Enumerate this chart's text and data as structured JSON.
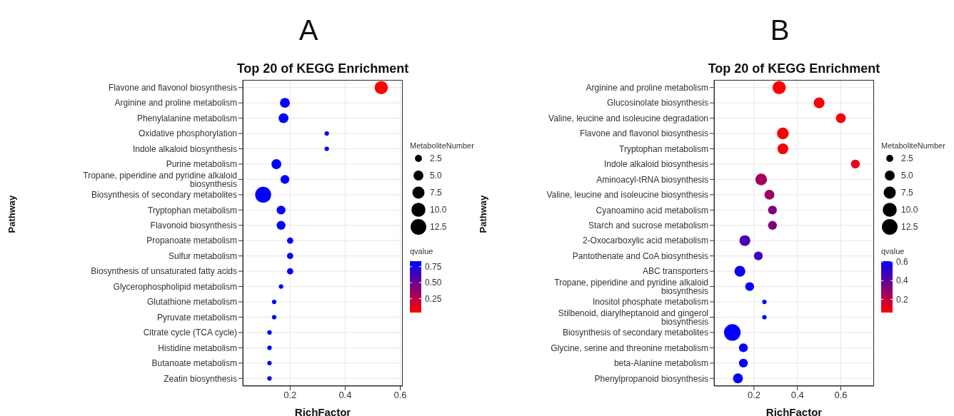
{
  "chart_data": [
    {
      "type": "bubble",
      "orientation": "horizontal",
      "annotations": [
        "A"
      ],
      "title": "Top 20 of KEGG Enrichment",
      "xlabel": "RichFactor",
      "ylabel": "Pathway",
      "legend_title": "MetaboliteNumber",
      "clabel": "qvalue",
      "categories": [
        "Flavone and flavonol biosynthesis",
        "Arginine and proline metabolism",
        "Phenylalanine metabolism",
        "Oxidative phosphorylation",
        "Indole alkaloid biosynthesis",
        "Purine metabolism",
        "Tropane, piperidine and pyridine alkaloid biosynthesis",
        "Biosynthesis of secondary metabolites",
        "Tryptophan metabolism",
        "Flavonoid biosynthesis",
        "Propanoate metabolism",
        "Sulfur metabolism",
        "Biosynthesis of unsaturated fatty acids",
        "Glycerophospholipid metabolism",
        "Glutathione metabolism",
        "Pyruvate metabolism",
        "Citrate cycle (TCA cycle)",
        "Histidine metabolism",
        "Butanoate metabolism",
        "Zeatin biosynthesis"
      ],
      "values": [
        0.531,
        0.181,
        0.176,
        0.333,
        0.333,
        0.15,
        0.181,
        0.102,
        0.167,
        0.167,
        0.2,
        0.2,
        0.2,
        0.167,
        0.142,
        0.142,
        0.125,
        0.125,
        0.125,
        0.125
      ],
      "sizes": [
        9,
        5,
        5,
        1,
        1,
        5,
        4,
        13,
        4,
        4,
        2,
        2,
        2,
        1,
        1,
        1,
        1,
        1,
        1,
        1
      ],
      "cvalues": [
        0.034,
        0.836,
        0.836,
        0.836,
        0.836,
        0.836,
        0.836,
        0.836,
        0.836,
        0.836,
        0.836,
        0.836,
        0.836,
        0.836,
        0.836,
        0.836,
        0.836,
        0.836,
        0.836,
        0.836
      ],
      "size_legend": [
        2.5,
        {
          "value": 5,
          "label": "5.0"
        },
        {
          "value": 7.5,
          "label": "7.5"
        },
        {
          "value": 10,
          "label": "10.0"
        },
        12.5
      ],
      "xlim": [
        0.028,
        0.609
      ],
      "xticks": [
        0.2,
        0.4,
        0.6
      ],
      "clim": [
        0.034,
        0.836
      ],
      "cticks": [
        0.25,
        {
          "value": 0.5,
          "label": "0.50"
        },
        0.75
      ],
      "grid": true
    },
    {
      "type": "bubble",
      "orientation": "horizontal",
      "annotations": [
        "B"
      ],
      "title": "Top 20 of KEGG Enrichment",
      "xlabel": "RichFactor",
      "ylabel": "Pathway",
      "legend_title": "MetaboliteNumber",
      "clabel": "qvalue",
      "categories": [
        "Arginine and proline metabolism",
        "Glucosinolate biosynthesis",
        "Valine, leucine and isoleucine degradation",
        "Flavone and flavonol biosynthesis",
        "Tryptophan metabolism",
        "Indole alkaloid biosynthesis",
        "Aminoacyl-tRNA biosynthesis",
        "Valine, leucine and isoleucine biosynthesis",
        "Cyanoamino acid metabolism",
        "Starch and sucrose metabolism",
        "2-Oxocarboxylic acid metabolism",
        "Pantothenate and CoA biosynthesis",
        "ABC transporters",
        "Tropane, piperidine and pyridine alkaloid biosynthesis",
        "Inositol phosphate metabolism",
        "Stilbenoid, diarylheptanoid and gingerol biosynthesis",
        "Biosynthesis of secondary metabolites",
        "Glycine, serine and threonine metabolism",
        "beta-Alanine metabolism",
        "Phenylpropanoid biosynthesis"
      ],
      "values": [
        0.316,
        0.5,
        0.6,
        0.333,
        0.333,
        0.667,
        0.233,
        0.271,
        0.285,
        0.285,
        0.158,
        0.22,
        0.135,
        0.18,
        0.248,
        0.248,
        0.1,
        0.151,
        0.151,
        0.126
      ],
      "sizes": [
        9,
        6,
        5,
        7,
        6,
        4,
        7,
        5,
        4,
        4,
        6,
        4,
        6,
        4,
        1,
        1,
        14,
        4,
        4,
        5
      ],
      "cvalues": [
        0.06,
        0.07,
        0.08,
        0.08,
        0.08,
        0.12,
        0.25,
        0.27,
        0.33,
        0.33,
        0.45,
        0.47,
        0.58,
        0.6,
        0.6,
        0.6,
        0.6,
        0.6,
        0.6,
        0.6
      ],
      "size_legend": [
        2.5,
        {
          "value": 5,
          "label": "5.0"
        },
        {
          "value": 7.5,
          "label": "7.5"
        },
        {
          "value": 10,
          "label": "10.0"
        },
        12.5
      ],
      "xlim": [
        0.016,
        0.753
      ],
      "xticks": [
        0.2,
        0.4,
        0.6
      ],
      "clim": [
        0.06,
        0.607
      ],
      "cticks": [
        0.2,
        0.4,
        0.6
      ],
      "grid": true
    }
  ]
}
